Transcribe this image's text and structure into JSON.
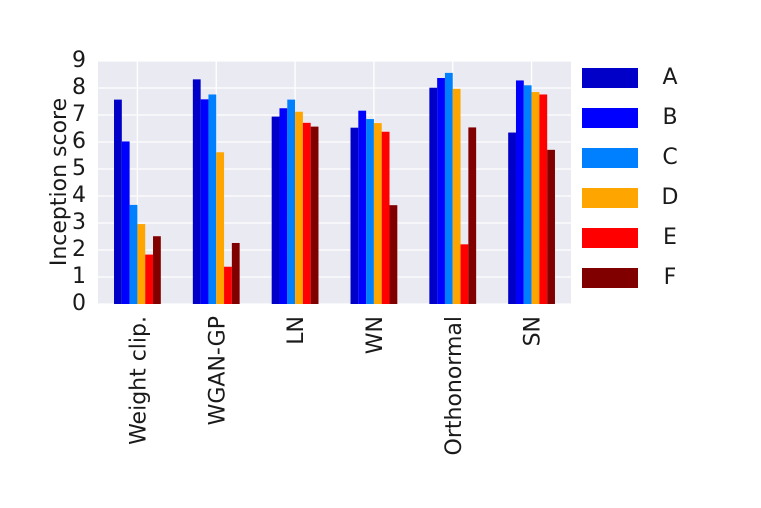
{
  "chart_data": {
    "type": "bar",
    "title": "",
    "xlabel": "",
    "ylabel": "Inception score",
    "ylim": [
      0,
      9
    ],
    "yticks": [
      "0",
      "1",
      "2",
      "3",
      "4",
      "5",
      "6",
      "7",
      "8",
      "9"
    ],
    "grid": true,
    "legend_placement": "right",
    "categories": [
      "Weight clip.",
      "WGAN-GP",
      "LN",
      "WN",
      "Orthonormal",
      "SN"
    ],
    "series": [
      {
        "name": "A",
        "color": "#0000c8",
        "values": [
          7.57,
          8.32,
          6.94,
          6.53,
          8.01,
          6.35
        ]
      },
      {
        "name": "B",
        "color": "#0000ff",
        "values": [
          6.02,
          7.58,
          7.25,
          7.16,
          8.37,
          8.28
        ]
      },
      {
        "name": "C",
        "color": "#0080ff",
        "values": [
          3.67,
          7.76,
          7.57,
          6.85,
          8.56,
          8.1
        ]
      },
      {
        "name": "D",
        "color": "#ffa500",
        "values": [
          2.96,
          5.62,
          7.12,
          6.7,
          7.97,
          7.85
        ]
      },
      {
        "name": "E",
        "color": "#ff0000",
        "values": [
          1.83,
          1.38,
          6.71,
          6.38,
          2.21,
          7.76
        ]
      },
      {
        "name": "F",
        "color": "#800000",
        "values": [
          2.51,
          2.26,
          6.57,
          3.66,
          6.54,
          5.71
        ]
      }
    ]
  }
}
